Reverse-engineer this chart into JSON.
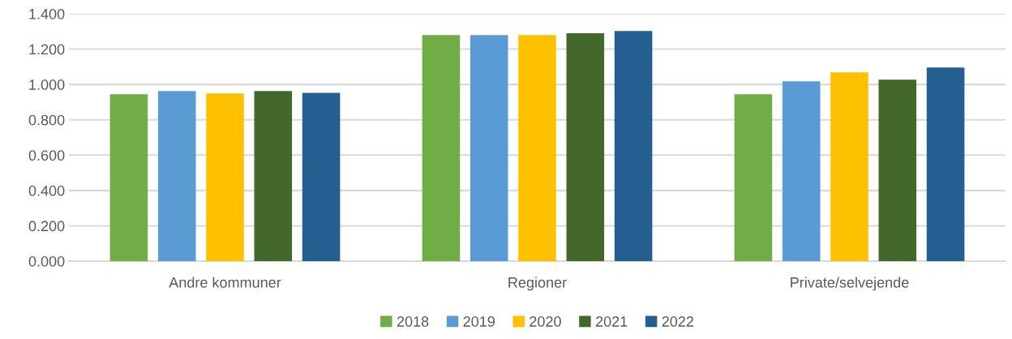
{
  "chart_data": {
    "type": "bar",
    "categories": [
      "Andre kommuner",
      "Regioner",
      "Private/selvejende"
    ],
    "series": [
      {
        "name": "2018",
        "color": "#70ad47",
        "values": [
          0.944,
          1.28,
          0.944
        ]
      },
      {
        "name": "2019",
        "color": "#5b9bd5",
        "values": [
          0.963,
          1.28,
          1.018
        ]
      },
      {
        "name": "2020",
        "color": "#ffc000",
        "values": [
          0.949,
          1.28,
          1.068
        ]
      },
      {
        "name": "2021",
        "color": "#43682b",
        "values": [
          0.963,
          1.29,
          1.027
        ]
      },
      {
        "name": "2022",
        "color": "#255e91",
        "values": [
          0.953,
          1.303,
          1.096
        ]
      }
    ],
    "ylim": [
      0,
      1.4
    ],
    "yticks": [
      {
        "value": 0,
        "label": "0.000"
      },
      {
        "value": 0.2,
        "label": "0.200"
      },
      {
        "value": 0.4,
        "label": "0.400"
      },
      {
        "value": 0.6,
        "label": "0.600"
      },
      {
        "value": 0.8,
        "label": "0.800"
      },
      {
        "value": 1.0,
        "label": "1.000"
      },
      {
        "value": 1.2,
        "label": "1.200"
      },
      {
        "value": 1.4,
        "label": "1.400"
      }
    ],
    "grid": "y",
    "legend": "bottom"
  }
}
